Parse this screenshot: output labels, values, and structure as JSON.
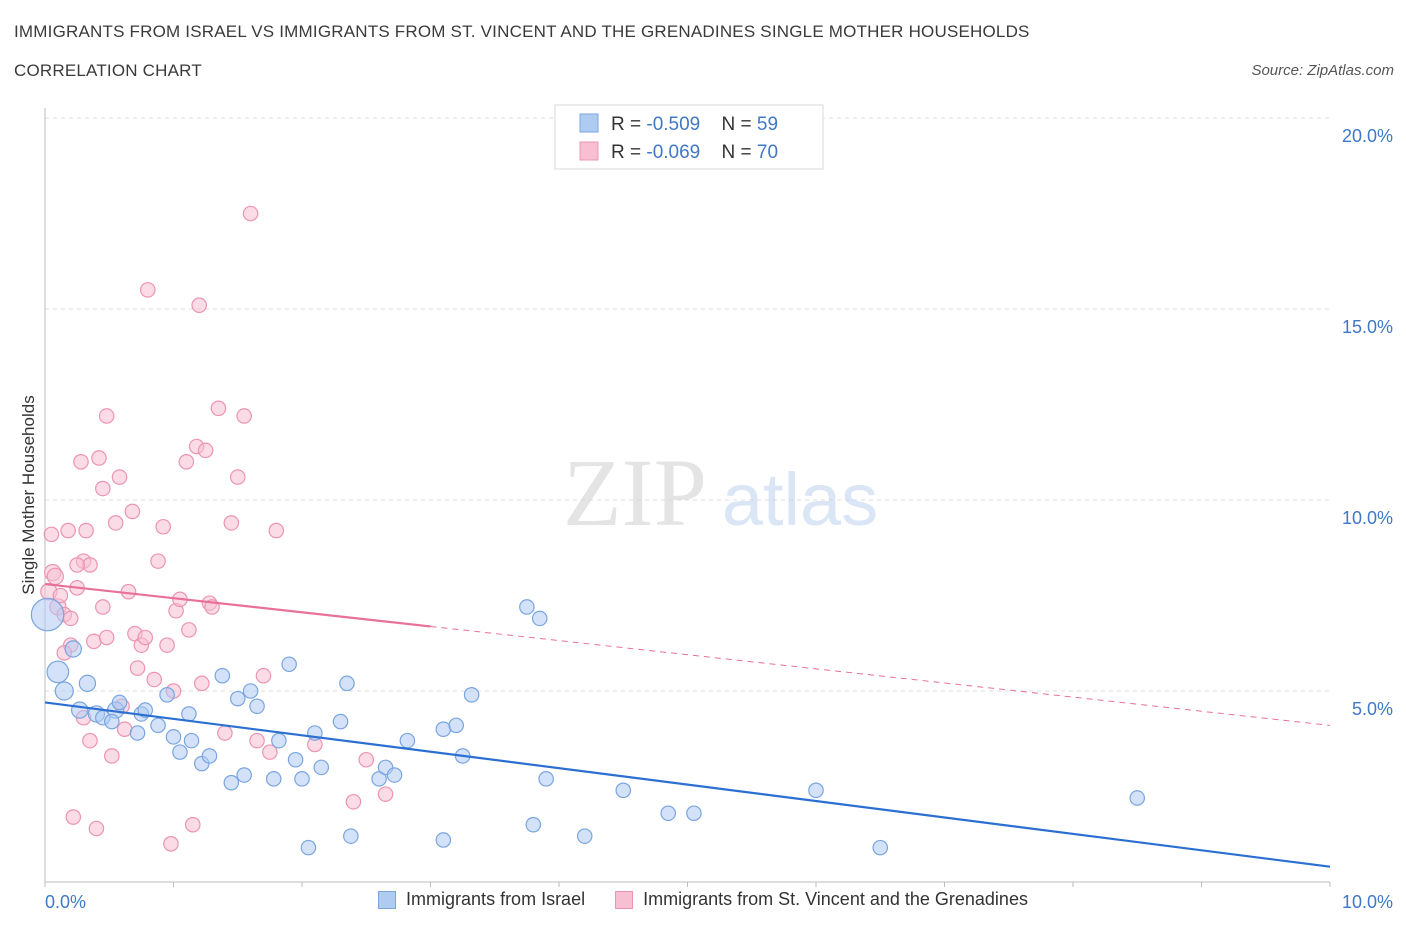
{
  "title": "IMMIGRANTS FROM ISRAEL VS IMMIGRANTS FROM ST. VINCENT AND THE GRENADINES SINGLE MOTHER HOUSEHOLDS",
  "subtitle": "CORRELATION CHART",
  "source": "Source: ZipAtlas.com",
  "watermark": {
    "zip": "ZIP",
    "atlas": "atlas"
  },
  "colors": {
    "israel_fill": "#aecbf2",
    "israel_stroke": "#7aa5e0",
    "israel_line": "#2a6fd1",
    "svg_fill": "#f7bfd1",
    "svg_stroke": "#ec94b1",
    "svg_line": "#e8709a",
    "tick_label": "#3f78c8"
  },
  "stats_legend": [
    {
      "r_label": "R = ",
      "r_value": "-0.509",
      "n_label": "N = ",
      "n_value": "59"
    },
    {
      "r_label": "R = ",
      "r_value": "-0.069",
      "n_label": "N = ",
      "n_value": "70"
    }
  ],
  "chart_data": {
    "type": "scatter",
    "ylabel": "Single Mother Households",
    "xlim": [
      0,
      10
    ],
    "ylim": [
      0,
      20
    ],
    "x_tick_labels": [
      "0.0%",
      "10.0%"
    ],
    "y_ticks": [
      5,
      10,
      15,
      20
    ],
    "y_tick_labels": [
      "5.0%",
      "10.0%",
      "15.0%",
      "20.0%"
    ],
    "grid": true,
    "series": [
      {
        "name": "Immigrants from Israel",
        "trend": {
          "x": [
            0,
            10
          ],
          "y": [
            4.7,
            0.4
          ],
          "dashed_from": null
        },
        "points": [
          [
            0.02,
            7.0,
            1.8
          ],
          [
            0.1,
            5.5,
            1.2
          ],
          [
            0.15,
            5.0,
            1.0
          ],
          [
            0.22,
            6.1,
            0.9
          ],
          [
            0.27,
            4.5,
            0.9
          ],
          [
            0.33,
            5.2,
            0.9
          ],
          [
            0.4,
            4.4,
            0.9
          ],
          [
            0.45,
            4.3,
            0.8
          ],
          [
            0.55,
            4.5,
            0.9
          ],
          [
            0.58,
            4.7,
            0.8
          ],
          [
            0.52,
            4.2,
            0.8
          ],
          [
            0.72,
            3.9,
            0.8
          ],
          [
            0.75,
            4.4,
            0.8
          ],
          [
            0.78,
            4.5,
            0.8
          ],
          [
            0.88,
            4.1,
            0.8
          ],
          [
            0.95,
            4.9,
            0.8
          ],
          [
            1.0,
            3.8,
            0.8
          ],
          [
            1.05,
            3.4,
            0.8
          ],
          [
            1.12,
            4.4,
            0.8
          ],
          [
            1.14,
            3.7,
            0.8
          ],
          [
            1.22,
            3.1,
            0.8
          ],
          [
            1.28,
            3.3,
            0.8
          ],
          [
            1.45,
            2.6,
            0.8
          ],
          [
            1.5,
            4.8,
            0.8
          ],
          [
            1.55,
            2.8,
            0.8
          ],
          [
            1.6,
            5.0,
            0.8
          ],
          [
            1.65,
            4.6,
            0.8
          ],
          [
            1.78,
            2.7,
            0.8
          ],
          [
            1.82,
            3.7,
            0.8
          ],
          [
            1.9,
            5.7,
            0.8
          ],
          [
            1.95,
            3.2,
            0.8
          ],
          [
            2.0,
            2.7,
            0.8
          ],
          [
            2.05,
            0.9,
            0.8
          ],
          [
            2.1,
            3.9,
            0.8
          ],
          [
            2.15,
            3.0,
            0.8
          ],
          [
            2.3,
            4.2,
            0.8
          ],
          [
            2.35,
            5.2,
            0.8
          ],
          [
            2.38,
            1.2,
            0.8
          ],
          [
            2.6,
            2.7,
            0.8
          ],
          [
            2.65,
            3.0,
            0.8
          ],
          [
            2.72,
            2.8,
            0.8
          ],
          [
            2.82,
            3.7,
            0.8
          ],
          [
            3.1,
            4.0,
            0.8
          ],
          [
            3.1,
            1.1,
            0.8
          ],
          [
            3.2,
            4.1,
            0.8
          ],
          [
            3.25,
            3.3,
            0.8
          ],
          [
            3.32,
            4.9,
            0.8
          ],
          [
            3.8,
            1.5,
            0.8
          ],
          [
            3.75,
            7.2,
            0.8
          ],
          [
            3.85,
            6.9,
            0.8
          ],
          [
            3.9,
            2.7,
            0.8
          ],
          [
            4.2,
            1.2,
            0.8
          ],
          [
            4.5,
            2.4,
            0.8
          ],
          [
            4.85,
            1.8,
            0.8
          ],
          [
            5.05,
            1.8,
            0.8
          ],
          [
            6.0,
            2.4,
            0.8
          ],
          [
            6.5,
            0.9,
            0.8
          ],
          [
            8.5,
            2.2,
            0.8
          ],
          [
            1.38,
            5.4,
            0.8
          ]
        ]
      },
      {
        "name": "Immigrants from St. Vincent and the Grenadines",
        "trend": {
          "x": [
            0,
            10
          ],
          "y": [
            7.8,
            4.1
          ],
          "dashed_from": 3.0
        },
        "points": [
          [
            0.03,
            7.6,
            0.9
          ],
          [
            0.06,
            8.1,
            0.9
          ],
          [
            0.08,
            8.0,
            0.9
          ],
          [
            0.1,
            7.2,
            0.9
          ],
          [
            0.12,
            7.5,
            0.8
          ],
          [
            0.15,
            7.0,
            0.8
          ],
          [
            0.18,
            9.2,
            0.8
          ],
          [
            0.2,
            6.9,
            0.8
          ],
          [
            0.25,
            7.7,
            0.8
          ],
          [
            0.28,
            11.0,
            0.8
          ],
          [
            0.3,
            8.4,
            0.8
          ],
          [
            0.32,
            9.2,
            0.8
          ],
          [
            0.35,
            8.3,
            0.8
          ],
          [
            0.38,
            6.3,
            0.8
          ],
          [
            0.42,
            11.1,
            0.8
          ],
          [
            0.45,
            7.2,
            0.8
          ],
          [
            0.48,
            6.4,
            0.8
          ],
          [
            0.05,
            9.1,
            0.8
          ],
          [
            0.2,
            6.2,
            0.8
          ],
          [
            0.22,
            1.7,
            0.8
          ],
          [
            0.3,
            4.3,
            0.8
          ],
          [
            0.35,
            3.7,
            0.8
          ],
          [
            0.4,
            1.4,
            0.8
          ],
          [
            0.45,
            10.3,
            0.8
          ],
          [
            0.48,
            12.2,
            0.8
          ],
          [
            0.52,
            3.3,
            0.8
          ],
          [
            0.55,
            9.4,
            0.8
          ],
          [
            0.58,
            10.6,
            0.8
          ],
          [
            0.6,
            4.6,
            0.8
          ],
          [
            0.62,
            4.0,
            0.8
          ],
          [
            0.65,
            7.6,
            0.8
          ],
          [
            0.68,
            9.7,
            0.8
          ],
          [
            0.7,
            6.5,
            0.8
          ],
          [
            0.72,
            5.6,
            0.8
          ],
          [
            0.75,
            6.2,
            0.8
          ],
          [
            0.78,
            6.4,
            0.8
          ],
          [
            0.8,
            15.5,
            0.8
          ],
          [
            0.85,
            5.3,
            0.8
          ],
          [
            0.88,
            8.4,
            0.8
          ],
          [
            0.92,
            9.3,
            0.8
          ],
          [
            0.95,
            6.2,
            0.8
          ],
          [
            0.98,
            1.0,
            0.8
          ],
          [
            1.0,
            5.0,
            0.8
          ],
          [
            1.02,
            7.1,
            0.8
          ],
          [
            1.05,
            7.4,
            0.8
          ],
          [
            1.1,
            11.0,
            0.8
          ],
          [
            1.12,
            6.6,
            0.8
          ],
          [
            1.15,
            1.5,
            0.8
          ],
          [
            1.18,
            11.4,
            0.8
          ],
          [
            1.2,
            15.1,
            0.8
          ],
          [
            1.22,
            5.2,
            0.8
          ],
          [
            1.25,
            11.3,
            0.8
          ],
          [
            1.28,
            7.3,
            0.8
          ],
          [
            1.3,
            7.2,
            0.8
          ],
          [
            1.35,
            12.4,
            0.8
          ],
          [
            1.4,
            3.9,
            0.8
          ],
          [
            1.45,
            9.4,
            0.8
          ],
          [
            1.5,
            10.6,
            0.8
          ],
          [
            1.55,
            12.2,
            0.8
          ],
          [
            1.6,
            17.5,
            0.8
          ],
          [
            1.65,
            3.7,
            0.8
          ],
          [
            1.7,
            5.4,
            0.8
          ],
          [
            1.75,
            3.4,
            0.8
          ],
          [
            1.8,
            9.2,
            0.8
          ],
          [
            2.1,
            3.6,
            0.8
          ],
          [
            2.4,
            2.1,
            0.8
          ],
          [
            2.5,
            3.2,
            0.8
          ],
          [
            2.65,
            2.3,
            0.8
          ],
          [
            0.15,
            6.0,
            0.8
          ],
          [
            0.25,
            8.3,
            0.8
          ]
        ]
      }
    ]
  }
}
